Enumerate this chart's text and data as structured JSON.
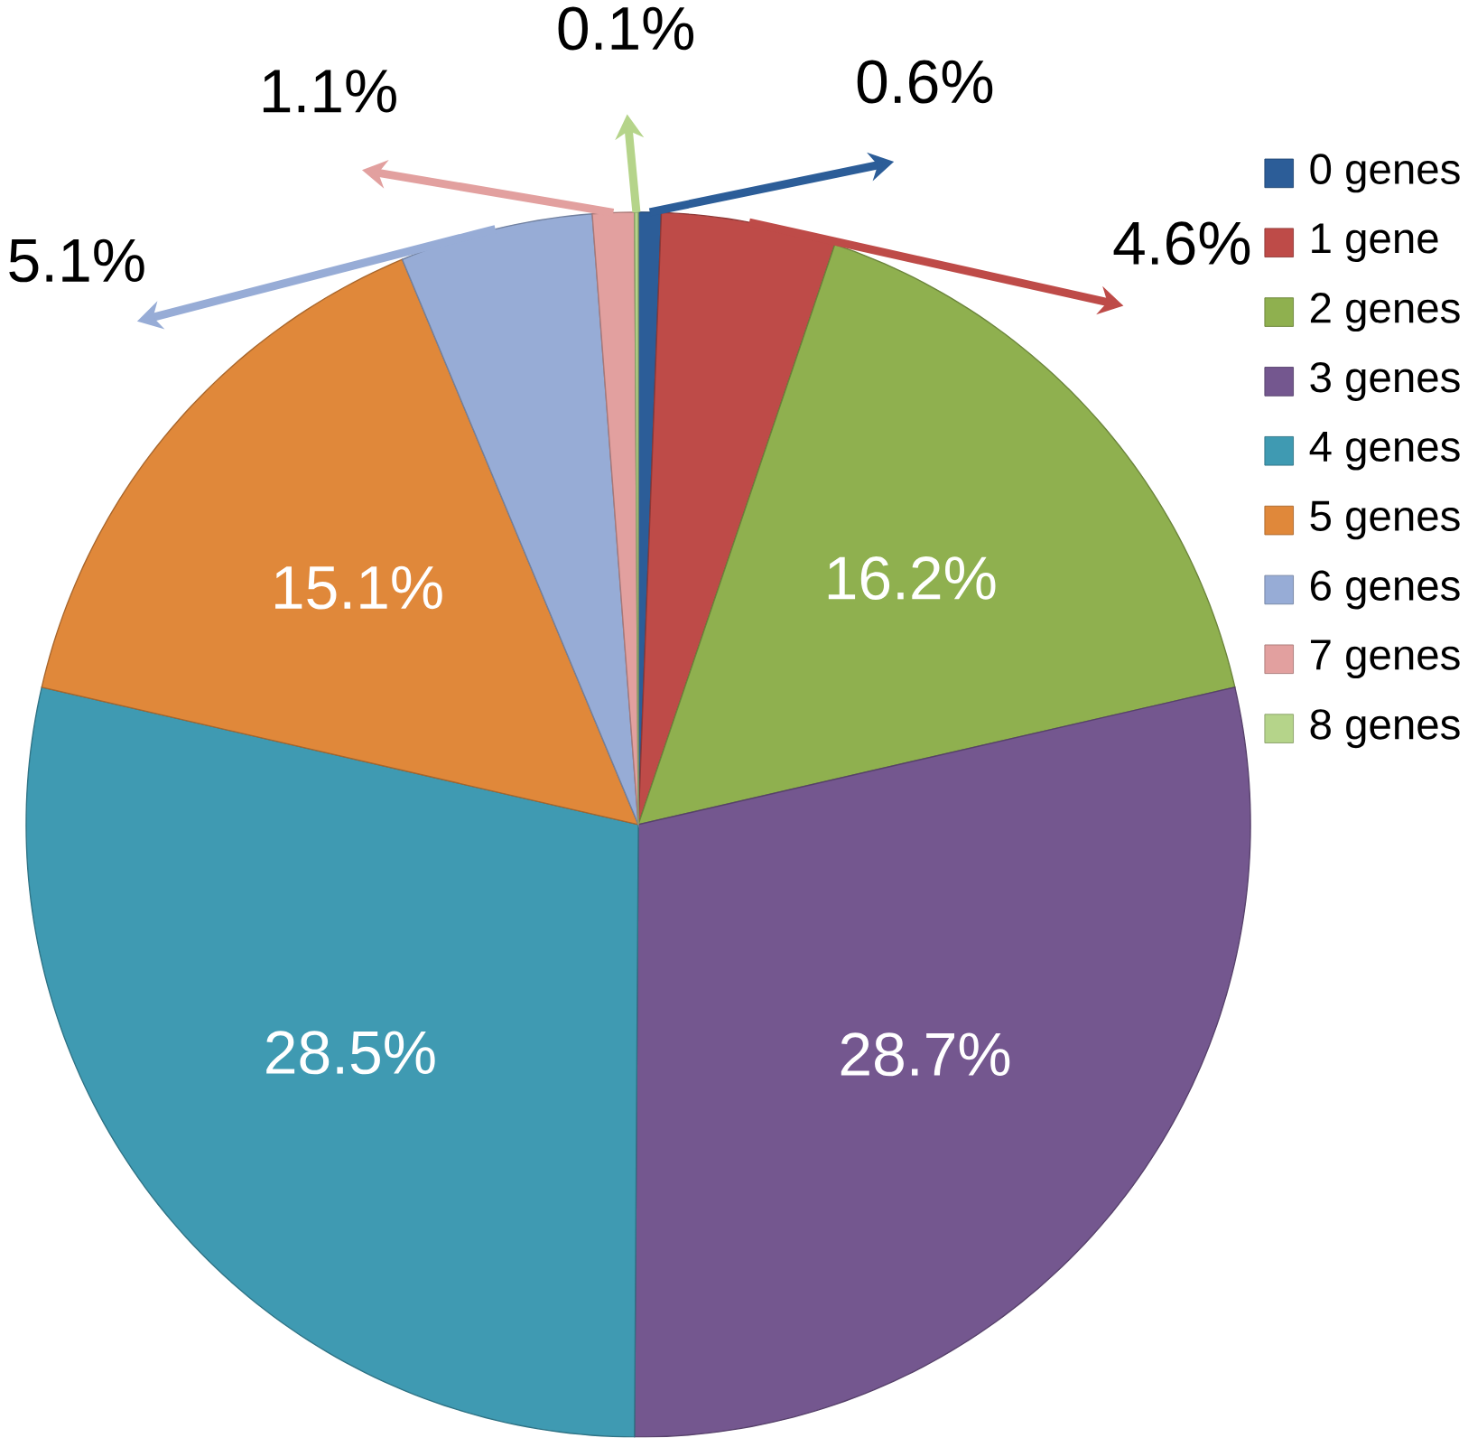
{
  "chart_data": {
    "type": "pie",
    "categories": [
      "0 genes",
      "1 gene",
      "2 genes",
      "3 genes",
      "4 genes",
      "5 genes",
      "6 genes",
      "7 genes",
      "8 genes"
    ],
    "values": [
      0.6,
      4.6,
      16.2,
      28.7,
      28.5,
      15.1,
      5.1,
      1.1,
      0.1
    ],
    "colors": [
      "#2c5d98",
      "#be4b48",
      "#8fb04f",
      "#74578f",
      "#3f9ab2",
      "#e0883a",
      "#97acd6",
      "#e2a09f",
      "#b5d48a"
    ],
    "value_labels": [
      "0.6%",
      "4.6%",
      "16.2%",
      "28.7%",
      "28.5%",
      "15.1%",
      "5.1%",
      "1.1%",
      "0.1%"
    ],
    "legend": "right"
  }
}
